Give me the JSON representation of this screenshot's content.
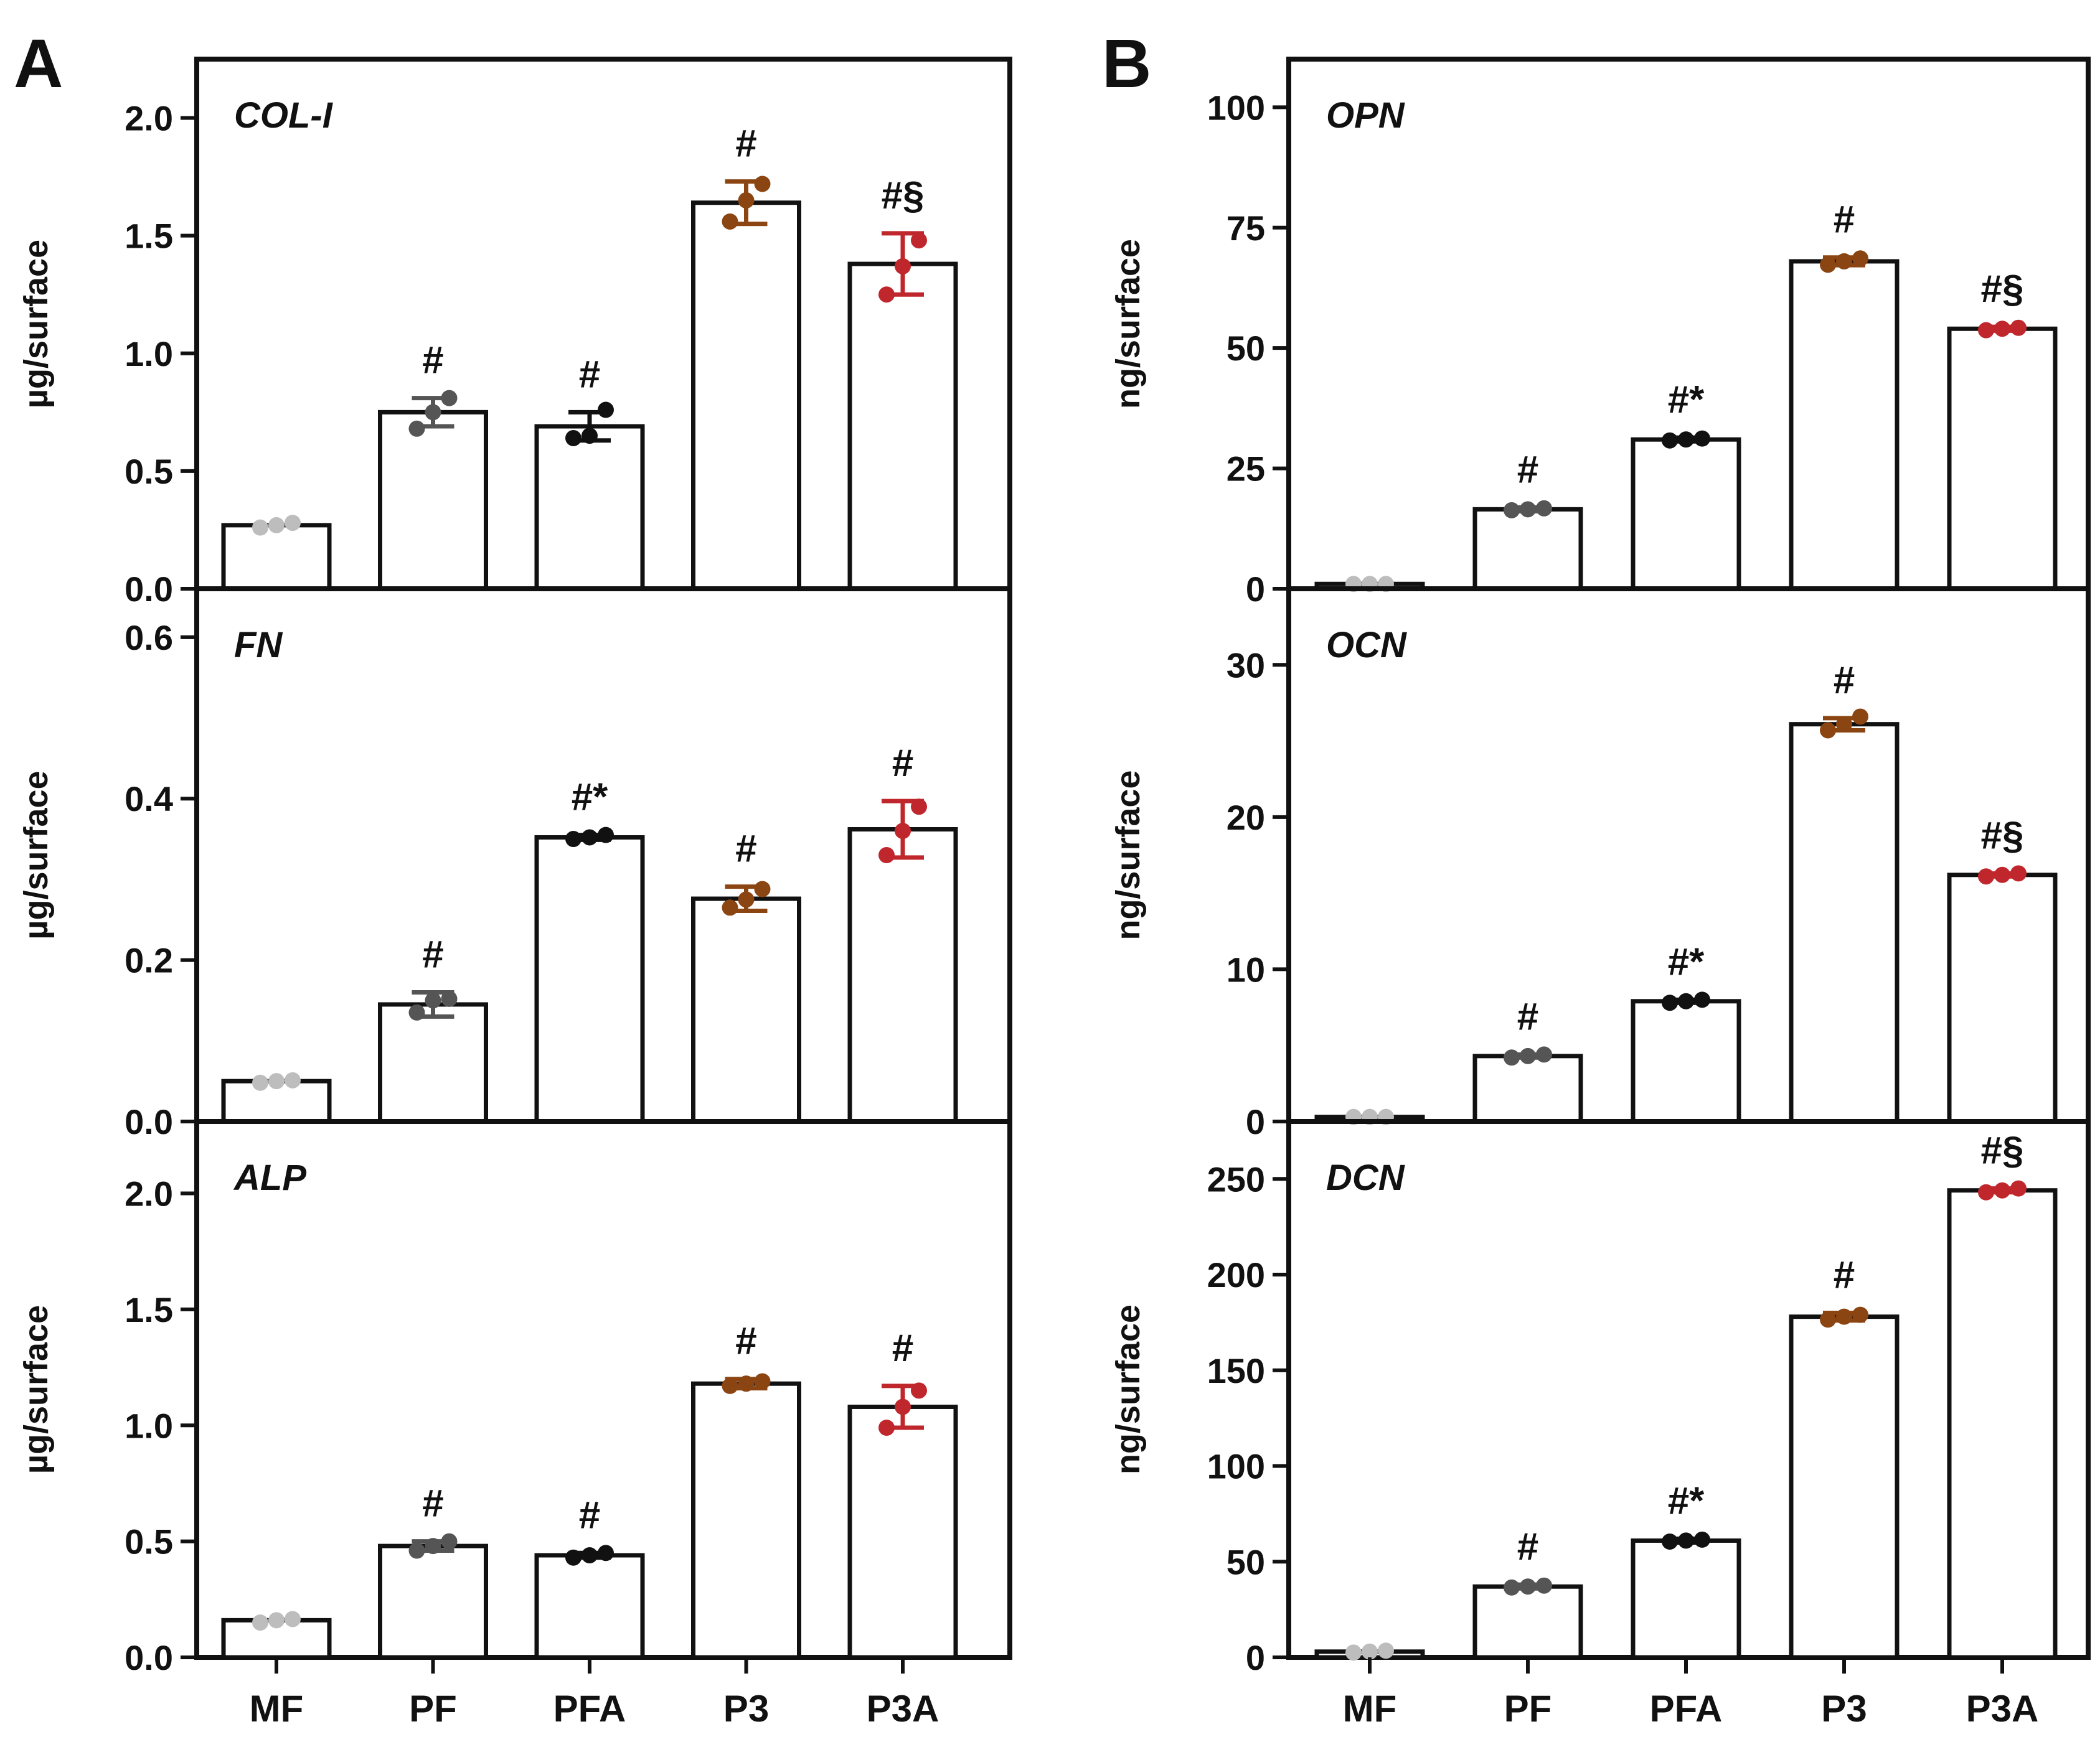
{
  "panels": {
    "A": {
      "letter": "A"
    },
    "B": {
      "letter": "B"
    }
  },
  "chart_data": [
    {
      "type": "bar",
      "panel": "A",
      "title": "COL-I",
      "ylabel": "µg/surface",
      "categories": [
        "MF",
        "PF",
        "PFA",
        "P3",
        "P3A"
      ],
      "values": [
        0.27,
        0.75,
        0.69,
        1.64,
        1.38
      ],
      "errors": [
        0.0,
        0.06,
        0.06,
        0.09,
        0.13
      ],
      "points": [
        [
          0.26,
          0.27,
          0.28
        ],
        [
          0.68,
          0.75,
          0.81
        ],
        [
          0.64,
          0.65,
          0.76
        ],
        [
          1.56,
          1.65,
          1.72
        ],
        [
          1.25,
          1.37,
          1.48
        ]
      ],
      "colors": [
        "#bdbdbd",
        "#555555",
        "#111111",
        "#8b4513",
        "#c0272d"
      ],
      "annotations": [
        "",
        "#",
        "#",
        "#",
        "#§"
      ],
      "ylim": [
        0,
        2.25
      ],
      "yticks": [
        0.0,
        0.5,
        1.0,
        1.5,
        2.0
      ],
      "ytick_labels": [
        "0.0",
        "0.5",
        "1.0",
        "1.5",
        "2.0"
      ]
    },
    {
      "type": "bar",
      "panel": "A",
      "title": "FN",
      "ylabel": "µg/surface",
      "categories": [
        "MF",
        "PF",
        "PFA",
        "P3",
        "P3A"
      ],
      "values": [
        0.05,
        0.145,
        0.352,
        0.276,
        0.362
      ],
      "errors": [
        0.0,
        0.015,
        0.003,
        0.015,
        0.035
      ],
      "points": [
        [
          0.048,
          0.05,
          0.051
        ],
        [
          0.135,
          0.15,
          0.152
        ],
        [
          0.35,
          0.352,
          0.355
        ],
        [
          0.265,
          0.275,
          0.288
        ],
        [
          0.33,
          0.36,
          0.39
        ]
      ],
      "colors": [
        "#bdbdbd",
        "#555555",
        "#111111",
        "#8b4513",
        "#c0272d"
      ],
      "annotations": [
        "",
        "#",
        "#*",
        "#",
        "#"
      ],
      "ylim": [
        0,
        0.66
      ],
      "yticks": [
        0.0,
        0.2,
        0.4,
        0.6
      ],
      "ytick_labels": [
        "0.0",
        "0.2",
        "0.4",
        "0.6"
      ]
    },
    {
      "type": "bar",
      "panel": "A",
      "title": "ALP",
      "ylabel": "µg/surface",
      "categories": [
        "MF",
        "PF",
        "PFA",
        "P3",
        "P3A"
      ],
      "values": [
        0.16,
        0.48,
        0.44,
        1.18,
        1.08
      ],
      "errors": [
        0.0,
        0.02,
        0.01,
        0.02,
        0.09
      ],
      "points": [
        [
          0.15,
          0.16,
          0.165
        ],
        [
          0.46,
          0.48,
          0.5
        ],
        [
          0.43,
          0.44,
          0.45
        ],
        [
          1.17,
          1.18,
          1.19
        ],
        [
          0.99,
          1.08,
          1.15
        ]
      ],
      "colors": [
        "#bdbdbd",
        "#555555",
        "#111111",
        "#8b4513",
        "#c0272d"
      ],
      "annotations": [
        "",
        "#",
        "#",
        "#",
        "#"
      ],
      "ylim": [
        0,
        2.31
      ],
      "yticks": [
        0.0,
        0.5,
        1.0,
        1.5,
        2.0
      ],
      "ytick_labels": [
        "0.0",
        "0.5",
        "1.0",
        "1.5",
        "2.0"
      ]
    },
    {
      "type": "bar",
      "panel": "B",
      "title": "OPN",
      "ylabel": "ng/surface",
      "categories": [
        "MF",
        "PF",
        "PFA",
        "P3",
        "P3A"
      ],
      "values": [
        1.0,
        16.5,
        31.0,
        68.0,
        54.0
      ],
      "errors": [
        0.0,
        0.4,
        0.4,
        0.8,
        0.4
      ],
      "points": [
        [
          1.0,
          1.0,
          1.0
        ],
        [
          16.3,
          16.5,
          16.7
        ],
        [
          30.8,
          31.0,
          31.2
        ],
        [
          67.3,
          68.0,
          68.6
        ],
        [
          53.7,
          54.0,
          54.2
        ]
      ],
      "colors": [
        "#bdbdbd",
        "#555555",
        "#111111",
        "#8b4513",
        "#c0272d"
      ],
      "annotations": [
        "",
        "#",
        "#*",
        "#",
        "#§"
      ],
      "ylim": [
        0,
        110
      ],
      "yticks": [
        0,
        25,
        50,
        75,
        100
      ],
      "ytick_labels": [
        "0",
        "25",
        "50",
        "75",
        "100"
      ]
    },
    {
      "type": "bar",
      "panel": "B",
      "title": "OCN",
      "ylabel": "ng/surface",
      "categories": [
        "MF",
        "PF",
        "PFA",
        "P3",
        "P3A"
      ],
      "values": [
        0.3,
        4.3,
        7.9,
        26.1,
        16.2
      ],
      "errors": [
        0.0,
        0.1,
        0.1,
        0.4,
        0.1
      ],
      "points": [
        [
          0.3,
          0.3,
          0.3
        ],
        [
          4.2,
          4.3,
          4.4
        ],
        [
          7.8,
          7.9,
          8.0
        ],
        [
          25.7,
          26.1,
          26.6
        ],
        [
          16.1,
          16.2,
          16.3
        ]
      ],
      "colors": [
        "#bdbdbd",
        "#555555",
        "#111111",
        "#8b4513",
        "#c0272d"
      ],
      "annotations": [
        "",
        "#",
        "#*",
        "#",
        "#§"
      ],
      "ylim": [
        0,
        35
      ],
      "yticks": [
        0,
        10,
        20,
        30
      ],
      "ytick_labels": [
        "0",
        "10",
        "20",
        "30"
      ]
    },
    {
      "type": "bar",
      "panel": "B",
      "title": "DCN",
      "ylabel": "ng/surface",
      "categories": [
        "MF",
        "PF",
        "PFA",
        "P3",
        "P3A"
      ],
      "values": [
        3,
        37,
        61,
        178,
        244
      ],
      "errors": [
        0,
        1,
        1,
        2,
        1
      ],
      "points": [
        [
          2.5,
          3,
          3.5
        ],
        [
          36.5,
          37,
          37.5
        ],
        [
          60.5,
          61,
          61.5
        ],
        [
          176.5,
          178,
          179
        ],
        [
          243,
          244,
          245
        ]
      ],
      "colors": [
        "#bdbdbd",
        "#555555",
        "#111111",
        "#8b4513",
        "#c0272d"
      ],
      "annotations": [
        "",
        "#",
        "#*",
        "#",
        "#§"
      ],
      "ylim": [
        0,
        280
      ],
      "yticks": [
        0,
        50,
        100,
        150,
        200,
        250
      ],
      "ytick_labels": [
        "0",
        "50",
        "100",
        "150",
        "200",
        "250"
      ]
    }
  ],
  "x_axis": {
    "A": {
      "categories": [
        "MF",
        "PF",
        "PFA",
        "P3",
        "P3A"
      ]
    },
    "B": {
      "categories": [
        "MF",
        "PF",
        "PFA",
        "P3",
        "P3A"
      ]
    }
  }
}
